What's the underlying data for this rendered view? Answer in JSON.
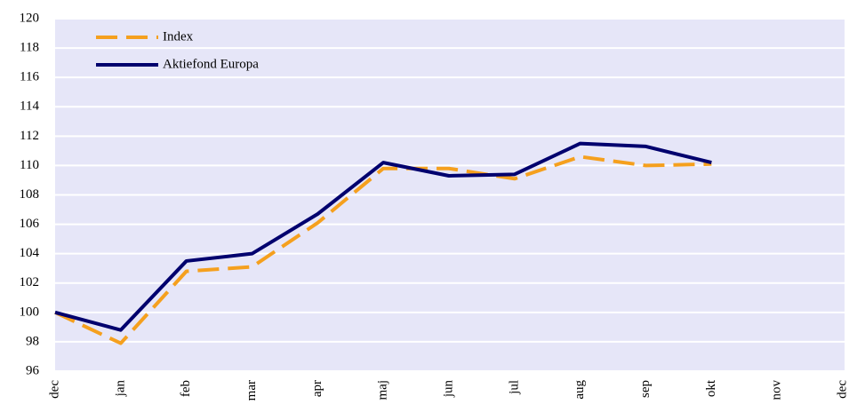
{
  "chart_data": {
    "type": "line",
    "categories": [
      "dec",
      "jan",
      "feb",
      "mar",
      "apr",
      "maj",
      "jun",
      "jul",
      "aug",
      "sep",
      "okt",
      "nov",
      "dec"
    ],
    "series": [
      {
        "name": "Index",
        "color": "#f5a01e",
        "dashed": true,
        "values": [
          100,
          97.9,
          102.8,
          103.1,
          106.1,
          109.8,
          109.8,
          109.1,
          110.6,
          110.0,
          110.1,
          null,
          null
        ]
      },
      {
        "name": "Aktiefond Europa",
        "color": "#00006e",
        "dashed": false,
        "values": [
          100,
          98.8,
          103.5,
          104.0,
          106.7,
          110.2,
          109.3,
          109.4,
          111.5,
          111.3,
          110.2,
          null,
          null
        ]
      }
    ],
    "ylim": [
      96,
      120
    ],
    "yticks": [
      96,
      98,
      100,
      102,
      104,
      106,
      108,
      110,
      112,
      114,
      116,
      118,
      120
    ],
    "grid": true,
    "legend": "top-left",
    "background": "#e6e6f8"
  }
}
